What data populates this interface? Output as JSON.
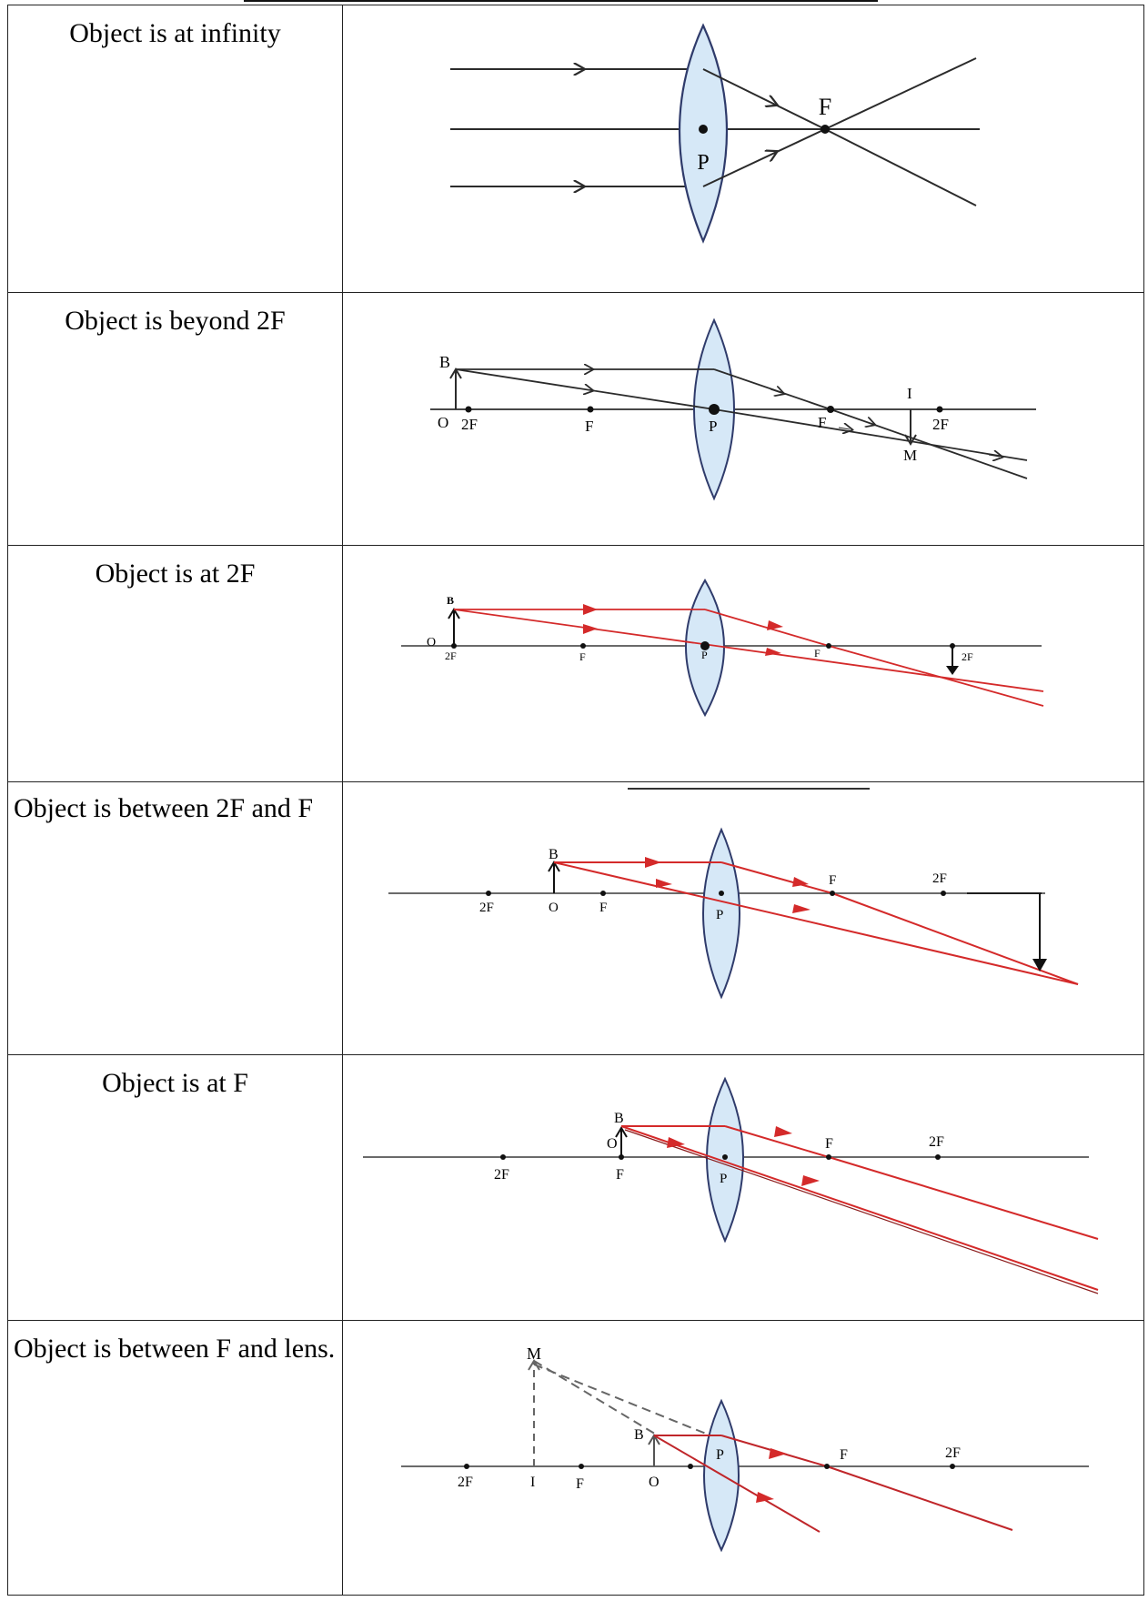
{
  "rows": [
    {
      "label": "Object is at infinity",
      "points": {
        "focus": "F",
        "pole": "P"
      }
    },
    {
      "label": "Object is beyond 2F",
      "points": {
        "top": "B",
        "origin": "O",
        "twoF_left": "2F",
        "f_left": "F",
        "pole": "P",
        "f_right": "F",
        "image_top": "I",
        "twoF_right": "2F",
        "image_tip": "M"
      }
    },
    {
      "label": "Object is at 2F",
      "points": {
        "top": "B",
        "origin": "O",
        "twoF_left": "2F",
        "f_left": "F",
        "pole": "P",
        "f_right": "F",
        "twoF_right": "2F"
      }
    },
    {
      "label": "Object is between 2F and F",
      "points": {
        "top": "B",
        "twoF_left": "2F",
        "origin": "O",
        "f_left": "F",
        "pole": "P",
        "f_right": "F",
        "twoF_right": "2F"
      }
    },
    {
      "label": "Object is at F",
      "points": {
        "top": "B",
        "origin": "O",
        "twoF_left": "2F",
        "f_left": "F",
        "pole": "P",
        "f_right": "F",
        "twoF_right": "2F"
      }
    },
    {
      "label": "Object is between F and lens.",
      "points": {
        "image_tip": "M",
        "top": "B",
        "twoF_left": "2F",
        "image_base": "I",
        "f_left": "F",
        "origin": "O",
        "pole": "P",
        "f_right": "F",
        "twoF_right": "2F"
      }
    }
  ],
  "colors": {
    "ray_black": "#2b2b2b",
    "ray_red": "#d42a2a",
    "lens_fill": "#d6e8f7",
    "lens_stroke": "#2f3b6b",
    "axis": "#555555"
  }
}
